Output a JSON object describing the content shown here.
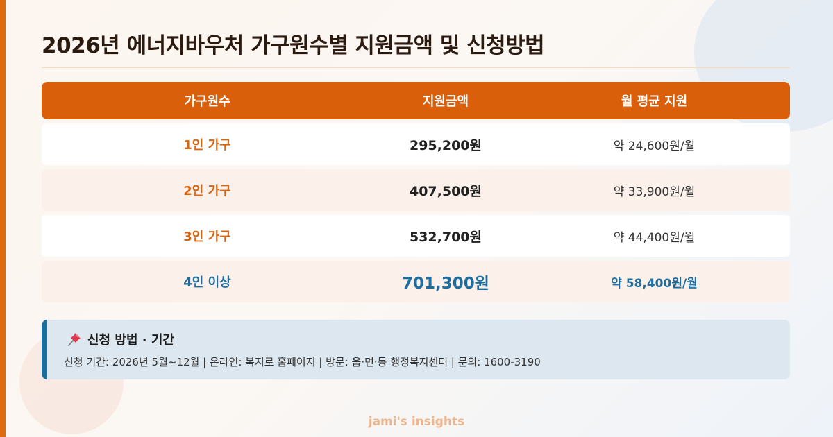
{
  "title": "2026년 에너지바우처 가구원수별 지원금액 및 신청방법",
  "table": {
    "headers": [
      "가구원수",
      "지원금액",
      "월 평균 지원"
    ],
    "rows": [
      {
        "group": "1인 가구",
        "amount": "295,200원",
        "monthly": "약 24,600원/월"
      },
      {
        "group": "2인 가구",
        "amount": "407,500원",
        "monthly": "약 33,900원/월"
      },
      {
        "group": "3인 가구",
        "amount": "532,700원",
        "monthly": "약 44,400원/월"
      },
      {
        "group": "4인 이상",
        "amount": "701,300원",
        "monthly": "약 58,400원/월"
      }
    ]
  },
  "info": {
    "icon": "pushpin-icon",
    "title": "신청 방법 · 기간",
    "text": "신청 기간: 2026년 5월~12월 | 온라인: 복지로 홈페이지 | 방문: 읍·면·동 행정복지센터 | 문의: 1600-3190"
  },
  "footer": "jami's insights",
  "colors": {
    "accent": "#d95f0a",
    "highlight": "#1d6d9f",
    "group_text": "#d9650f"
  }
}
